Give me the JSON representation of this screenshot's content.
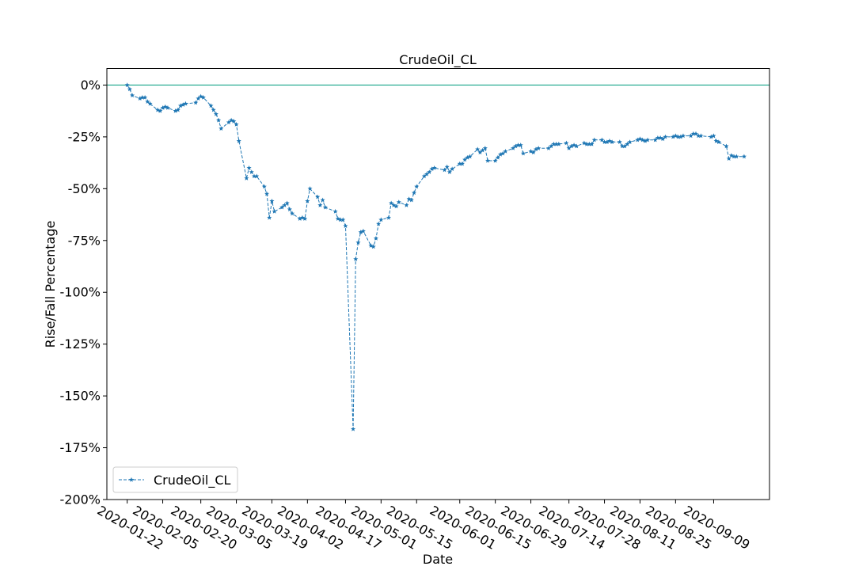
{
  "chart_data": {
    "type": "line",
    "title": "CrudeOil_CL",
    "xlabel": "Date",
    "ylabel": "Rise/Fall Percentage",
    "ylim": [
      -200,
      8
    ],
    "xlim": [
      "2020-01-14",
      "2020-10-01"
    ],
    "y_ticks": [
      0,
      -25,
      -50,
      -75,
      -100,
      -125,
      -150,
      -175,
      -200
    ],
    "y_tick_labels": [
      "0%",
      "-25%",
      "-50%",
      "-75%",
      "-100%",
      "-125%",
      "-150%",
      "-175%",
      "-200%"
    ],
    "x_tick_labels": [
      "2020-01-22",
      "2020-02-05",
      "2020-02-20",
      "2020-03-05",
      "2020-03-19",
      "2020-04-02",
      "2020-04-17",
      "2020-05-01",
      "2020-05-15",
      "2020-06-01",
      "2020-06-15",
      "2020-06-29",
      "2020-07-14",
      "2020-07-28",
      "2020-08-11",
      "2020-08-25",
      "2020-09-09"
    ],
    "reference_line": {
      "y": 0,
      "color": "#17a589"
    },
    "grid": false,
    "legend": {
      "position": "lower-left",
      "entries": [
        "CrudeOil_CL"
      ]
    },
    "series": [
      {
        "name": "CrudeOil_CL",
        "color": "#1f77b4",
        "line_style": "dashed",
        "marker": "star",
        "points": [
          [
            "2020-01-22",
            0
          ],
          [
            "2020-01-23",
            -2
          ],
          [
            "2020-01-24",
            -5
          ],
          [
            "2020-01-27",
            -6.5
          ],
          [
            "2020-01-28",
            -6
          ],
          [
            "2020-01-29",
            -6
          ],
          [
            "2020-01-30",
            -8
          ],
          [
            "2020-01-31",
            -9
          ],
          [
            "2020-02-03",
            -12
          ],
          [
            "2020-02-04",
            -12.5
          ],
          [
            "2020-02-05",
            -11
          ],
          [
            "2020-02-06",
            -10.5
          ],
          [
            "2020-02-07",
            -11
          ],
          [
            "2020-02-10",
            -12.5
          ],
          [
            "2020-02-11",
            -12
          ],
          [
            "2020-02-12",
            -10
          ],
          [
            "2020-02-13",
            -9.5
          ],
          [
            "2020-02-14",
            -9
          ],
          [
            "2020-02-18",
            -8.5
          ],
          [
            "2020-02-19",
            -6.5
          ],
          [
            "2020-02-20",
            -5.5
          ],
          [
            "2020-02-21",
            -6
          ],
          [
            "2020-02-24",
            -10
          ],
          [
            "2020-02-25",
            -12
          ],
          [
            "2020-02-26",
            -14
          ],
          [
            "2020-02-27",
            -17
          ],
          [
            "2020-02-28",
            -21
          ],
          [
            "2020-03-02",
            -18
          ],
          [
            "2020-03-03",
            -17
          ],
          [
            "2020-03-04",
            -17.5
          ],
          [
            "2020-03-05",
            -19
          ],
          [
            "2020-03-06",
            -27
          ],
          [
            "2020-03-09",
            -45
          ],
          [
            "2020-03-10",
            -40
          ],
          [
            "2020-03-11",
            -42
          ],
          [
            "2020-03-12",
            -44
          ],
          [
            "2020-03-13",
            -44
          ],
          [
            "2020-03-16",
            -49
          ],
          [
            "2020-03-17",
            -52.5
          ],
          [
            "2020-03-18",
            -64
          ],
          [
            "2020-03-19",
            -56
          ],
          [
            "2020-03-20",
            -61
          ],
          [
            "2020-03-23",
            -59
          ],
          [
            "2020-03-24",
            -58
          ],
          [
            "2020-03-25",
            -57
          ],
          [
            "2020-03-26",
            -60
          ],
          [
            "2020-03-27",
            -62
          ],
          [
            "2020-03-30",
            -64.5
          ],
          [
            "2020-03-31",
            -64
          ],
          [
            "2020-04-01",
            -64.5
          ],
          [
            "2020-04-02",
            -56
          ],
          [
            "2020-04-03",
            -50
          ],
          [
            "2020-04-06",
            -54
          ],
          [
            "2020-04-07",
            -58
          ],
          [
            "2020-04-08",
            -55.5
          ],
          [
            "2020-04-09",
            -59
          ],
          [
            "2020-04-13",
            -61
          ],
          [
            "2020-04-14",
            -64.5
          ],
          [
            "2020-04-15",
            -65
          ],
          [
            "2020-04-16",
            -65
          ],
          [
            "2020-04-17",
            -68
          ],
          [
            "2020-04-20",
            -166
          ],
          [
            "2020-04-21",
            -84
          ],
          [
            "2020-04-22",
            -76
          ],
          [
            "2020-04-23",
            -71
          ],
          [
            "2020-04-24",
            -70.5
          ],
          [
            "2020-04-27",
            -77.5
          ],
          [
            "2020-04-28",
            -78
          ],
          [
            "2020-04-29",
            -74
          ],
          [
            "2020-04-30",
            -67
          ],
          [
            "2020-05-01",
            -65
          ],
          [
            "2020-05-04",
            -64
          ],
          [
            "2020-05-05",
            -57
          ],
          [
            "2020-05-06",
            -58
          ],
          [
            "2020-05-07",
            -58.5
          ],
          [
            "2020-05-08",
            -56.5
          ],
          [
            "2020-05-11",
            -58
          ],
          [
            "2020-05-12",
            -55
          ],
          [
            "2020-05-13",
            -55.5
          ],
          [
            "2020-05-14",
            -52
          ],
          [
            "2020-05-15",
            -49
          ],
          [
            "2020-05-18",
            -44
          ],
          [
            "2020-05-19",
            -43
          ],
          [
            "2020-05-20",
            -42
          ],
          [
            "2020-05-21",
            -40.5
          ],
          [
            "2020-05-22",
            -40
          ],
          [
            "2020-05-26",
            -41
          ],
          [
            "2020-05-27",
            -39.5
          ],
          [
            "2020-05-28",
            -42
          ],
          [
            "2020-05-29",
            -40.5
          ],
          [
            "2020-06-01",
            -38
          ],
          [
            "2020-06-02",
            -38
          ],
          [
            "2020-06-03",
            -36
          ],
          [
            "2020-06-04",
            -35
          ],
          [
            "2020-06-05",
            -34.5
          ],
          [
            "2020-06-08",
            -31
          ],
          [
            "2020-06-09",
            -32.5
          ],
          [
            "2020-06-10",
            -31.5
          ],
          [
            "2020-06-11",
            -30.5
          ],
          [
            "2020-06-12",
            -36.5
          ],
          [
            "2020-06-15",
            -36.5
          ],
          [
            "2020-06-16",
            -35
          ],
          [
            "2020-06-17",
            -33.5
          ],
          [
            "2020-06-18",
            -33
          ],
          [
            "2020-06-19",
            -32
          ],
          [
            "2020-06-22",
            -30.5
          ],
          [
            "2020-06-23",
            -29.5
          ],
          [
            "2020-06-24",
            -29
          ],
          [
            "2020-06-25",
            -29
          ],
          [
            "2020-06-26",
            -33
          ],
          [
            "2020-06-29",
            -32
          ],
          [
            "2020-06-30",
            -32.5
          ],
          [
            "2020-07-01",
            -31
          ],
          [
            "2020-07-02",
            -30.5
          ],
          [
            "2020-07-06",
            -30.5
          ],
          [
            "2020-07-07",
            -29.5
          ],
          [
            "2020-07-08",
            -28.5
          ],
          [
            "2020-07-09",
            -28.5
          ],
          [
            "2020-07-10",
            -28.5
          ],
          [
            "2020-07-13",
            -28
          ],
          [
            "2020-07-14",
            -30.5
          ],
          [
            "2020-07-15",
            -29.5
          ],
          [
            "2020-07-16",
            -29
          ],
          [
            "2020-07-17",
            -29.5
          ],
          [
            "2020-07-20",
            -28
          ],
          [
            "2020-07-21",
            -28.5
          ],
          [
            "2020-07-22",
            -28.5
          ],
          [
            "2020-07-23",
            -28.5
          ],
          [
            "2020-07-24",
            -26.5
          ],
          [
            "2020-07-27",
            -26.5
          ],
          [
            "2020-07-28",
            -27.5
          ],
          [
            "2020-07-29",
            -27.5
          ],
          [
            "2020-07-30",
            -27
          ],
          [
            "2020-07-31",
            -27.5
          ],
          [
            "2020-08-03",
            -27.5
          ],
          [
            "2020-08-04",
            -29.5
          ],
          [
            "2020-08-05",
            -29.5
          ],
          [
            "2020-08-06",
            -28.5
          ],
          [
            "2020-08-07",
            -27.5
          ],
          [
            "2020-08-10",
            -26.5
          ],
          [
            "2020-08-11",
            -26
          ],
          [
            "2020-08-12",
            -26.5
          ],
          [
            "2020-08-13",
            -27
          ],
          [
            "2020-08-14",
            -26.5
          ],
          [
            "2020-08-17",
            -26.5
          ],
          [
            "2020-08-18",
            -25.5
          ],
          [
            "2020-08-19",
            -25.5
          ],
          [
            "2020-08-20",
            -26
          ],
          [
            "2020-08-21",
            -25
          ],
          [
            "2020-08-24",
            -25
          ],
          [
            "2020-08-25",
            -24.5
          ],
          [
            "2020-08-26",
            -25
          ],
          [
            "2020-08-27",
            -25
          ],
          [
            "2020-08-28",
            -24.5
          ],
          [
            "2020-08-31",
            -24.5
          ],
          [
            "2020-09-01",
            -23.5
          ],
          [
            "2020-09-02",
            -23.5
          ],
          [
            "2020-09-03",
            -24.5
          ],
          [
            "2020-09-04",
            -24.5
          ],
          [
            "2020-09-08",
            -25
          ],
          [
            "2020-09-09",
            -24.5
          ],
          [
            "2020-09-10",
            -27
          ],
          [
            "2020-09-11",
            -27.5
          ],
          [
            "2020-09-14",
            -29.5
          ],
          [
            "2020-09-15",
            -35.5
          ],
          [
            "2020-09-16",
            -34
          ],
          [
            "2020-09-17",
            -34.5
          ],
          [
            "2020-09-18",
            -34.5
          ],
          [
            "2020-09-21",
            -34.5
          ]
        ]
      }
    ]
  }
}
